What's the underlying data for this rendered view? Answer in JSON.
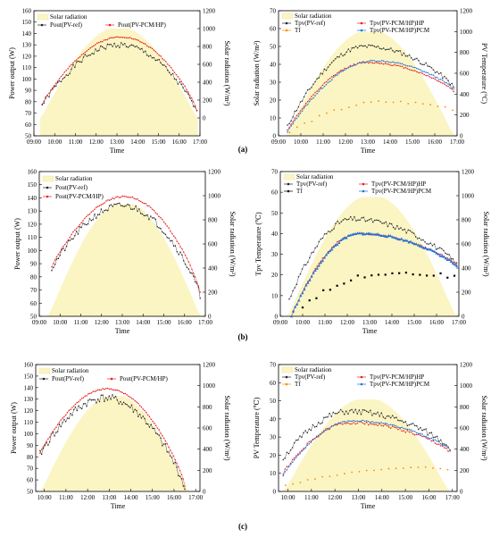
{
  "colors": {
    "radiation_fill": "#fbf5c4",
    "ref": "#222222",
    "pcm_hp": "#e8211c",
    "hp": "#e8211c",
    "pcm": "#1f6fd6",
    "tf": "#ff8a00",
    "tf_b": "#000000"
  },
  "panel_labels": [
    "(a)",
    "(b)",
    "(c)"
  ],
  "chart_data": [
    {
      "id": "a-power",
      "type": "line",
      "row": "a",
      "col": "left",
      "xlabel": "Time",
      "ylabel": "Power output (W)",
      "y2label": "Solar radiation (W/m²)",
      "x_ticks": [
        "09:00",
        "10:00",
        "11:00",
        "12:00",
        "13:00",
        "14:00",
        "15:00",
        "16:00",
        "17:00"
      ],
      "ylim": [
        50,
        160
      ],
      "y_ticks": [
        50,
        60,
        70,
        80,
        90,
        100,
        110,
        120,
        130,
        140,
        150,
        160
      ],
      "y2lim": [
        -200,
        1200
      ],
      "y2_ticks": [
        0,
        200,
        400,
        600,
        800,
        1000,
        1200
      ],
      "radiation": {
        "name": "Solar radiation",
        "t_start": 9.3,
        "t_end": 16.9,
        "peak": 1000,
        "peak_t": 13.0
      },
      "series": [
        {
          "name": "Pout(PV-ref)",
          "kind": "ref",
          "t_start": 9.4,
          "t_end": 16.85,
          "peak": 130,
          "peak_t": 13.1,
          "end_val": 70,
          "start_val": 77,
          "noise": 2.5,
          "marker": "dot"
        },
        {
          "name": "Pout(PV-PCM/HP)",
          "kind": "pcm_hp",
          "t_start": 9.4,
          "t_end": 16.85,
          "peak": 137,
          "peak_t": 13.2,
          "end_val": 72,
          "start_val": 78,
          "noise": 0.5,
          "marker": "dot"
        }
      ],
      "legend": [
        "Solar radiation",
        "Pout(PV-ref)",
        "Pout(PV-PCM/HP)"
      ],
      "legend_layout": "two-rows"
    },
    {
      "id": "a-temp",
      "type": "line",
      "row": "a",
      "col": "right",
      "xlabel": "Time",
      "ylabel": "Solar radiation (W/m²)",
      "y2label": "PV Temperature (°C)",
      "left_axis_is_radiation": true,
      "x_ticks": [
        "09:00",
        "10:00",
        "11:00",
        "12:00",
        "13:00",
        "14:00",
        "15:00",
        "16:00",
        "17:00"
      ],
      "ylim": [
        0,
        70
      ],
      "y_ticks": [
        0,
        10,
        20,
        30,
        40,
        50,
        60,
        70
      ],
      "y2lim": [
        0,
        1200
      ],
      "y2_ticks": [
        0,
        200,
        400,
        600,
        800,
        1000,
        1200
      ],
      "radiation": {
        "name": "Solar radiation",
        "t_start": 9.3,
        "t_end": 16.9,
        "peak": 1000,
        "peak_t": 13.0
      },
      "series": [
        {
          "name": "Tpv(PV-ref)",
          "kind": "ref",
          "t_start": 9.4,
          "t_end": 16.85,
          "peak": 50,
          "peak_t": 12.9,
          "end_val": 27,
          "start_val": 5,
          "noise": 1.2,
          "marker": "dot"
        },
        {
          "name": "Tpv(PV-PCM/HP)HP",
          "kind": "hp",
          "t_start": 9.4,
          "t_end": 16.85,
          "peak": 41,
          "peak_t": 13.0,
          "end_val": 25,
          "start_val": 3,
          "noise": 0.4,
          "marker": "dot"
        },
        {
          "name": "Tpv(PV-PCM/HP)PCM",
          "kind": "pcm",
          "t_start": 9.4,
          "t_end": 16.85,
          "peak": 42,
          "peak_t": 13.3,
          "end_val": 26,
          "start_val": 2,
          "noise": 0.4,
          "marker": "dot"
        },
        {
          "name": "Tf",
          "kind": "tf",
          "t_start": 9.5,
          "t_end": 16.8,
          "peak": 19,
          "peak_t": 13.8,
          "end_val": 15,
          "start_val": 2,
          "noise": 0.8,
          "marker": "sparse"
        }
      ],
      "legend": [
        "Solar radiation",
        "Tpv(PV-ref)",
        "Tpv(PV-PCM/HP)HP",
        "Tf",
        "Tpv(PV-PCM/HP)PCM"
      ],
      "legend_layout": "right-temp"
    },
    {
      "id": "b-power",
      "type": "line",
      "row": "b",
      "col": "left",
      "xlabel": "Time",
      "ylabel": "Power output (W)",
      "y2label": "Solar radiation (W/m²)",
      "x_ticks": [
        "09:00",
        "10:00",
        "11:00",
        "12:00",
        "13:00",
        "14:00",
        "15:00",
        "16:00",
        "17:00"
      ],
      "ylim": [
        50,
        160
      ],
      "y_ticks": [
        50,
        60,
        70,
        80,
        90,
        100,
        110,
        120,
        130,
        140,
        150,
        160
      ],
      "y2lim": [
        0,
        1200
      ],
      "y2_ticks": [
        0,
        200,
        400,
        600,
        800,
        1000,
        1200
      ],
      "radiation": {
        "name": "Solar radiation",
        "t_start": 9.4,
        "t_end": 16.8,
        "peak": 930,
        "peak_t": 13.0
      },
      "series": [
        {
          "name": "Pout(PV-ref)",
          "kind": "ref",
          "t_start": 9.6,
          "t_end": 16.75,
          "peak": 134,
          "peak_t": 13.0,
          "end_val": 65,
          "start_val": 86,
          "noise": 2.5,
          "marker": "dot"
        },
        {
          "name": "Pout(PV-PCM/HP)",
          "kind": "pcm_hp",
          "t_start": 9.6,
          "t_end": 16.75,
          "peak": 141,
          "peak_t": 13.1,
          "end_val": 68,
          "start_val": 88,
          "noise": 0.5,
          "marker": "dot"
        }
      ],
      "legend": [
        "Solar radiation",
        "Pout(PV-ref)",
        "Pout(PV-PCM/HP)"
      ],
      "legend_layout": "stack"
    },
    {
      "id": "b-temp",
      "type": "line",
      "row": "b",
      "col": "right",
      "xlabel": "Time",
      "ylabel": "Tpv Temperature (℃)",
      "y2label": "Solar radiation (W/m²)",
      "x_ticks": [
        "09:00",
        "10:00",
        "11:00",
        "12:00",
        "13:00",
        "14:00",
        "15:00",
        "16:00",
        "17:00"
      ],
      "ylim": [
        0,
        70
      ],
      "y_ticks": [
        0,
        10,
        20,
        30,
        40,
        50,
        60,
        70
      ],
      "y2lim": [
        0,
        1200
      ],
      "y2_ticks": [
        0,
        200,
        400,
        600,
        800,
        1000,
        1200
      ],
      "radiation": {
        "name": "Solar radiation",
        "t_start": 9.3,
        "t_end": 16.9,
        "peak": 990,
        "peak_t": 13.0
      },
      "series": [
        {
          "name": "Tpv(PV-ref)",
          "kind": "ref",
          "t_start": 9.4,
          "t_end": 16.9,
          "peak": 47,
          "peak_t": 12.2,
          "end_val": 25,
          "start_val": 8,
          "noise": 1.2,
          "marker": "dot"
        },
        {
          "name": "Tpv(PV-PCM/HP)HP",
          "kind": "hp",
          "t_start": 9.5,
          "t_end": 16.9,
          "peak": 40,
          "peak_t": 12.5,
          "end_val": 25,
          "start_val": 0,
          "noise": 0.4,
          "marker": "dot"
        },
        {
          "name": "Tpv(PV-PCM/HP)PCM",
          "kind": "pcm",
          "t_start": 9.5,
          "t_end": 16.9,
          "peak": 40,
          "peak_t": 12.6,
          "end_val": 24,
          "start_val": 0,
          "noise": 0.4,
          "marker": "triangle"
        },
        {
          "name": "Tf",
          "kind": "tf_b",
          "t_start": 10.0,
          "t_end": 16.8,
          "peak": 21,
          "peak_t": 13.8,
          "end_val": 19,
          "start_val": 5,
          "noise": 1.0,
          "marker": "sparse-square"
        }
      ],
      "legend": [
        "Solar radiation",
        "Tpv(PV-ref)",
        "Tpv(PV-PCM/HP)HP",
        "Tf",
        "Tpv(PV-PCM/HP)PCM"
      ],
      "legend_layout": "right-temp"
    },
    {
      "id": "c-power",
      "type": "line",
      "row": "c",
      "col": "left",
      "xlabel": "Time",
      "ylabel": "Power output (W)",
      "y2label": "Solar radiation (W/m²)",
      "x_ticks": [
        "10:00",
        "11:00",
        "12:00",
        "13:00",
        "14:00",
        "15:00",
        "16:00",
        "17:00"
      ],
      "ylim": [
        50,
        160
      ],
      "y_ticks": [
        50,
        60,
        70,
        80,
        90,
        100,
        110,
        120,
        130,
        140,
        150,
        160
      ],
      "y2lim": [
        0,
        1200
      ],
      "y2_ticks": [
        0,
        200,
        400,
        600,
        800,
        1000,
        1200
      ],
      "x_range": [
        9.6,
        17.2
      ],
      "radiation": {
        "name": "Solar radiation",
        "t_start": 9.8,
        "t_end": 16.7,
        "peak": 900,
        "peak_t": 13.0
      },
      "series": [
        {
          "name": "Pout(PV-ref)",
          "kind": "ref",
          "t_start": 9.8,
          "t_end": 16.5,
          "peak": 131,
          "peak_t": 12.8,
          "end_val": 52,
          "start_val": 82,
          "noise": 3.5,
          "marker": "dot"
        },
        {
          "name": "Pout(PV-PCM/HP)",
          "kind": "pcm_hp",
          "t_start": 9.8,
          "t_end": 16.5,
          "peak": 139,
          "peak_t": 12.9,
          "end_val": 55,
          "start_val": 83,
          "noise": 0.5,
          "marker": "dot"
        }
      ],
      "legend": [
        "Solar radiation",
        "Pout(PV-ref)",
        "Pout(PV-PCM/HP)"
      ],
      "legend_layout": "two-rows"
    },
    {
      "id": "c-temp",
      "type": "line",
      "row": "c",
      "col": "right",
      "xlabel": "Time",
      "ylabel": "PV Temperature (℃)",
      "y2label": "Solar radiation (W/m²)",
      "x_ticks": [
        "10:00",
        "11:00",
        "12:00",
        "13:00",
        "14:00",
        "15:00",
        "16:00",
        "17:00"
      ],
      "ylim": [
        0,
        70
      ],
      "y_ticks": [
        0,
        10,
        20,
        30,
        40,
        50,
        60,
        70
      ],
      "y2lim": [
        0,
        1200
      ],
      "y2_ticks": [
        0,
        200,
        400,
        600,
        800,
        1000,
        1200
      ],
      "x_range": [
        9.6,
        17.2
      ],
      "radiation": {
        "name": "Solar radiation",
        "t_start": 9.8,
        "t_end": 16.9,
        "peak": 870,
        "peak_t": 13.0
      },
      "series": [
        {
          "name": "Tpv(PV-ref)",
          "kind": "ref",
          "t_start": 9.8,
          "t_end": 16.9,
          "peak": 44,
          "peak_t": 12.6,
          "end_val": 24,
          "start_val": 18,
          "noise": 1.6,
          "marker": "dot"
        },
        {
          "name": "Tpv(PV-PCM/HP)HP",
          "kind": "hp",
          "t_start": 9.8,
          "t_end": 16.9,
          "peak": 38,
          "peak_t": 12.7,
          "end_val": 22,
          "start_val": 10,
          "noise": 0.8,
          "marker": "dot"
        },
        {
          "name": "Tpv(PV-PCM/HP)PCM",
          "kind": "pcm",
          "t_start": 9.8,
          "t_end": 16.9,
          "peak": 39,
          "peak_t": 12.8,
          "end_val": 23,
          "start_val": 9,
          "noise": 0.4,
          "marker": "dot"
        },
        {
          "name": "Tf",
          "kind": "tf",
          "t_start": 9.9,
          "t_end": 16.8,
          "peak": 13,
          "peak_t": 15.5,
          "end_val": 12,
          "start_val": 3,
          "noise": 0.5,
          "marker": "sparse"
        }
      ],
      "legend": [
        "Solar radiation",
        "Tpv(PV-ref)",
        "Tpv(PV-PCM/HP)HP",
        "Tf",
        "Tpv(PV-PCM/HP)PCM"
      ],
      "legend_layout": "right-temp"
    }
  ]
}
